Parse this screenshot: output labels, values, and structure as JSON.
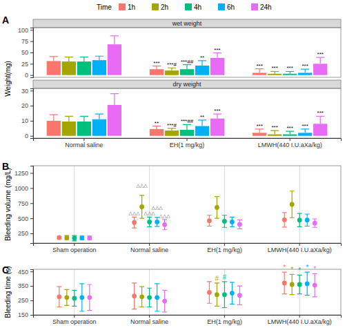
{
  "legend_title": "Time",
  "chart_data": [
    {
      "type": "bar",
      "panel": "A",
      "y_label": "Weight(mg)",
      "grid": false,
      "categories": [
        "Normal saline",
        "EH(1 mg/kg)",
        "LMWH(440 I.U.aXa/kg)"
      ],
      "facets": [
        {
          "title": "wet weight",
          "ylim": [
            -5,
            105
          ],
          "yticks": [
            0,
            25,
            50,
            75,
            100
          ],
          "series": [
            {
              "name": "1h",
              "color": "#F8766D",
              "values": [
                31,
                13,
                5
              ],
              "errors": [
                10,
                7,
                9
              ],
              "annotations": [
                null,
                "***",
                "***"
              ]
            },
            {
              "name": "2h",
              "color": "#A3A500",
              "values": [
                30,
                10,
                3
              ],
              "errors": [
                10,
                6,
                5
              ],
              "annotations": [
                null,
                "***#",
                "***"
              ]
            },
            {
              "name": "4h",
              "color": "#00BF7D",
              "values": [
                30,
                13,
                3
              ],
              "errors": [
                10,
                10,
                5
              ],
              "annotations": [
                null,
                "***##",
                "***"
              ]
            },
            {
              "name": "6h",
              "color": "#00B0F6",
              "values": [
                33,
                21,
                5
              ],
              "errors": [
                9,
                11,
                8
              ],
              "annotations": [
                null,
                "**",
                "***"
              ]
            },
            {
              "name": "24h",
              "color": "#E76BF3",
              "values": [
                68,
                38,
                25
              ],
              "errors": [
                19,
                11,
                14
              ],
              "annotations": [
                null,
                "***",
                "***"
              ]
            }
          ]
        },
        {
          "title": "dry weight",
          "ylim": [
            -1.5,
            31.5
          ],
          "yticks": [
            0,
            10,
            20,
            30
          ],
          "series": [
            {
              "name": "1h",
              "color": "#F8766D",
              "values": [
                10,
                4.5,
                2
              ],
              "errors": [
                4,
                2,
                2.5
              ],
              "annotations": [
                null,
                "**",
                "***"
              ]
            },
            {
              "name": "2h",
              "color": "#A3A500",
              "values": [
                9.5,
                3.5,
                1
              ],
              "errors": [
                3.5,
                1.5,
                2.5
              ],
              "annotations": [
                null,
                "***#",
                "***"
              ]
            },
            {
              "name": "4h",
              "color": "#00BF7D",
              "values": [
                9.5,
                4,
                1
              ],
              "errors": [
                3.5,
                3.5,
                2
              ],
              "annotations": [
                null,
                "***##",
                "***"
              ]
            },
            {
              "name": "6h",
              "color": "#00B0F6",
              "values": [
                11,
                6.5,
                2
              ],
              "errors": [
                3.5,
                4,
                2.5
              ],
              "annotations": [
                null,
                "**",
                "***"
              ]
            },
            {
              "name": "24h",
              "color": "#E76BF3",
              "values": [
                20.5,
                11.5,
                8
              ],
              "errors": [
                7.5,
                3,
                5
              ],
              "annotations": [
                null,
                "***",
                "***"
              ]
            }
          ]
        }
      ]
    },
    {
      "type": "scatter",
      "panel": "B",
      "y_label": "Bleeding volume (mg/L)",
      "grid": true,
      "marker": "circle",
      "categories": [
        "Sham operation",
        "Normal saline",
        "EH(1 mg/kg)",
        "LMWH(440 I.U.aXa/kg)"
      ],
      "ylim": [
        90,
        1370
      ],
      "yticks": [
        250,
        500,
        750,
        1000,
        1250
      ],
      "series": [
        {
          "name": "1h",
          "color": "#F8766D",
          "values": [
            180,
            430,
            460,
            475
          ],
          "errors": [
            20,
            90,
            90,
            120
          ],
          "annotations": [
            null,
            "△△△",
            null,
            null
          ]
        },
        {
          "name": "2h",
          "color": "#A3A500",
          "values": [
            180,
            690,
            680,
            730
          ],
          "errors": [
            35,
            190,
            180,
            220
          ],
          "annotations": [
            null,
            "△△△",
            null,
            null
          ]
        },
        {
          "name": "4h",
          "color": "#00BF7D",
          "values": [
            170,
            440,
            450,
            470
          ],
          "errors": [
            45,
            80,
            100,
            110
          ],
          "annotations": [
            null,
            "△△△",
            null,
            null
          ]
        },
        {
          "name": "6h",
          "color": "#00B0F6",
          "values": [
            175,
            440,
            440,
            470
          ],
          "errors": [
            30,
            75,
            80,
            100
          ],
          "annotations": [
            null,
            "△△△",
            null,
            null
          ]
        },
        {
          "name": "24h",
          "color": "#E76BF3",
          "values": [
            175,
            395,
            400,
            420
          ],
          "errors": [
            30,
            85,
            75,
            70
          ],
          "annotations": [
            null,
            "△△△",
            null,
            null
          ]
        }
      ]
    },
    {
      "type": "scatter",
      "panel": "C",
      "y_label": "Bleeding time (s)",
      "grid": true,
      "marker": "circle",
      "categories": [
        "Sham operation",
        "Normal saline",
        "EH(1 mg/kg)",
        "LMWH(440 I.U.aXa/kg)"
      ],
      "ylim": [
        150,
        465
      ],
      "yticks": [
        150,
        250,
        350,
        450
      ],
      "series": [
        {
          "name": "1h",
          "color": "#F8766D",
          "values": [
            275,
            280,
            305,
            370
          ],
          "errors": [
            70,
            90,
            75,
            75
          ],
          "annotations": [
            null,
            null,
            null,
            "*"
          ]
        },
        {
          "name": "2h",
          "color": "#A3A500",
          "values": [
            270,
            275,
            290,
            360
          ],
          "errors": [
            55,
            70,
            80,
            70
          ],
          "annotations": [
            null,
            null,
            "#",
            "*"
          ]
        },
        {
          "name": "4h",
          "color": "#00BF7D",
          "values": [
            265,
            270,
            290,
            360
          ],
          "errors": [
            55,
            65,
            90,
            65
          ],
          "annotations": [
            null,
            null,
            "#",
            "*"
          ]
        },
        {
          "name": "6h",
          "color": "#00B0F6",
          "values": [
            270,
            270,
            300,
            365
          ],
          "errors": [
            95,
            95,
            75,
            80
          ],
          "annotations": [
            null,
            null,
            null,
            "*"
          ]
        },
        {
          "name": "24h",
          "color": "#E76BF3",
          "values": [
            270,
            245,
            285,
            355
          ],
          "errors": [
            90,
            75,
            65,
            80
          ],
          "annotations": [
            null,
            null,
            null,
            "*"
          ]
        }
      ]
    }
  ]
}
